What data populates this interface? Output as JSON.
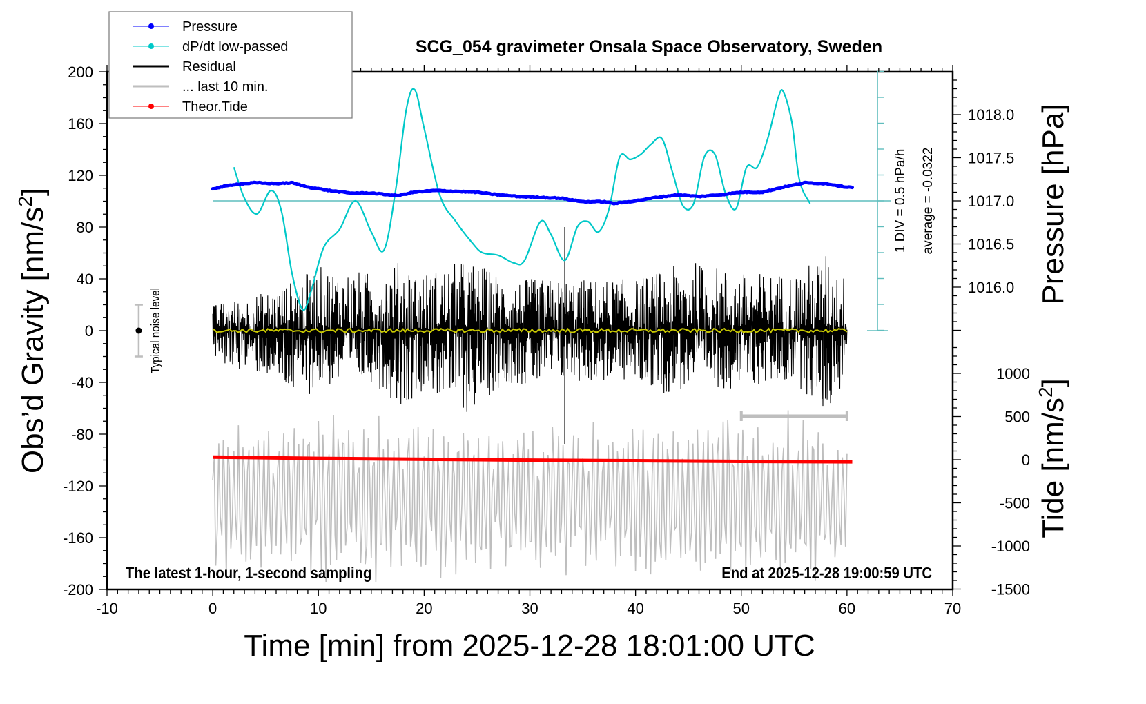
{
  "chart_data": {
    "type": "line",
    "title": "SCG_054 gravimeter Onsala Space Observatory, Sweden",
    "xlabel": "Time [min] from 2025-12-28 18:01:00 UTC",
    "ylabel_left": "Obs'd Gravity [nm/s²]",
    "ylabel_right_top": "Pressure [hPa]",
    "ylabel_right_bottom": "Tide [nm/s²]",
    "xlim": [
      -10,
      70
    ],
    "ylim_left": [
      -200,
      200
    ],
    "ylim_pressure": [
      1015.5,
      1018.5
    ],
    "ylim_tide": [
      -1500,
      1500
    ],
    "x_ticks": [
      "-10",
      "0",
      "10",
      "20",
      "30",
      "40",
      "50",
      "60",
      "70"
    ],
    "y_ticks_left": [
      "200",
      "160",
      "120",
      "80",
      "40",
      "0",
      "-40",
      "-80",
      "-120",
      "-160",
      "-200"
    ],
    "y_ticks_pressure": [
      "1018.0",
      "1017.5",
      "1017.0",
      "1016.5",
      "1016.0"
    ],
    "y_ticks_tide": [
      "1000",
      "500",
      "0",
      "-500",
      "-1000",
      "-1500"
    ],
    "legend": {
      "position": "top-left",
      "entries": [
        {
          "label": "Pressure",
          "color": "#0000ff",
          "marker": "dot"
        },
        {
          "label": "dP/dt low-passed",
          "color": "#00c8c8",
          "marker": "dot"
        },
        {
          "label": "Residual",
          "color": "#000000",
          "marker": "line"
        },
        {
          "label": "... last 10 min.",
          "color": "#bebebe",
          "marker": "line"
        },
        {
          "label": "Theor.Tide",
          "color": "#ff0000",
          "marker": "dot"
        }
      ]
    },
    "annotations": {
      "dpdt_scale": "1 DIV = 0.5 hPa/h",
      "dpdt_average": "average = -0.0322",
      "noise_label": "Typical noise level",
      "bottom_left": "The latest 1-hour, 1-second sampling",
      "bottom_right": "End at 2025-12-28 19:00:59 UTC"
    },
    "noise_bar": {
      "x": -7,
      "center": 0,
      "half_range": 20
    },
    "last10_bar": {
      "x_start": 50,
      "x_end": 60
    },
    "series": [
      {
        "name": "Pressure",
        "axis": "pressure",
        "color": "#0000ff",
        "x": [
          0,
          2,
          4,
          6,
          7.5,
          9,
          11,
          13,
          15,
          17.5,
          19,
          21,
          23,
          25,
          27,
          29,
          31,
          33,
          35,
          37,
          38,
          40,
          42,
          44,
          46,
          48,
          50,
          52,
          54,
          56,
          58,
          60
        ],
        "y": [
          1017.14,
          1017.19,
          1017.21,
          1017.2,
          1017.21,
          1017.16,
          1017.12,
          1017.09,
          1017.09,
          1017.06,
          1017.1,
          1017.12,
          1017.11,
          1017.1,
          1017.07,
          1017.05,
          1017.04,
          1017.03,
          1016.99,
          1016.99,
          1016.97,
          1017.0,
          1017.04,
          1017.07,
          1017.05,
          1017.07,
          1017.1,
          1017.1,
          1017.16,
          1017.21,
          1017.2,
          1017.16
        ]
      },
      {
        "name": "dP/dt low-passed",
        "axis": "dpdt_div",
        "color": "#00c8c8",
        "x": [
          2,
          3,
          4.2,
          5.5,
          6.5,
          7.5,
          8.5,
          9.3,
          10.5,
          12,
          13.5,
          15,
          16.2,
          17.3,
          18.3,
          19.1,
          20,
          21.5,
          23,
          24.5,
          25.5,
          27,
          28.5,
          29.5,
          31,
          32,
          33.3,
          34.5,
          35.5,
          36.5,
          37.5,
          38.5,
          39.5,
          40.5,
          41.5,
          42.5,
          43.5,
          44.5,
          45.5,
          46.5,
          47.5,
          48.5,
          49.5,
          50.5,
          51.5,
          52.5,
          53.5,
          54,
          54.8,
          55.5,
          56.5
        ],
        "y": [
          1.3,
          0.1,
          -0.5,
          0.4,
          -0.4,
          -2.8,
          -4.2,
          -3.5,
          -1.8,
          -1.1,
          0.0,
          -1.2,
          -1.9,
          0.4,
          3.5,
          4.3,
          2.8,
          0.2,
          -0.8,
          -1.6,
          -2.0,
          -2.1,
          -2.4,
          -2.3,
          -0.8,
          -1.3,
          -2.3,
          -1.0,
          -0.8,
          -1.2,
          -0.3,
          1.7,
          1.6,
          1.8,
          2.2,
          2.4,
          1.1,
          -0.2,
          -0.1,
          1.7,
          1.8,
          0.3,
          -0.3,
          1.3,
          1.3,
          2.4,
          4.0,
          4.2,
          3.0,
          0.8,
          -0.1
        ]
      },
      {
        "name": "Residual",
        "axis": "gravity",
        "color": "#000000",
        "envelope_x": [
          0,
          5,
          8,
          10,
          15,
          18,
          20,
          24,
          25.5,
          28,
          30,
          33,
          35,
          40,
          43,
          45,
          50,
          55,
          58,
          60
        ],
        "envelope_upper": [
          20,
          30,
          40,
          50,
          45,
          55,
          45,
          55,
          50,
          40,
          40,
          40,
          40,
          40,
          48,
          55,
          45,
          45,
          60,
          40
        ],
        "envelope_lower": [
          -25,
          -35,
          -55,
          -45,
          -40,
          -60,
          -45,
          -65,
          -55,
          -40,
          -45,
          -40,
          -40,
          -40,
          -50,
          -45,
          -45,
          -40,
          -65,
          -40
        ],
        "max_spike": 80,
        "min_spike": -88,
        "range_x": [
          0,
          60
        ]
      },
      {
        "name": "Residual smoothed",
        "axis": "gravity",
        "color": "#c8c800",
        "level": 0,
        "range_x": [
          0,
          60
        ]
      },
      {
        "name": "... last 10 min.",
        "axis": "gravity",
        "color": "#bebebe",
        "range_x": [
          0,
          60
        ],
        "upper_limit": -60,
        "lower_limit": -180,
        "center": -130
      },
      {
        "name": "Theor.Tide",
        "axis": "tide",
        "color": "#ff0000",
        "x": [
          0,
          10,
          20,
          30,
          40,
          50,
          60.5
        ],
        "y": [
          30,
          15,
          5,
          -5,
          -12,
          -20,
          -25
        ]
      }
    ]
  }
}
